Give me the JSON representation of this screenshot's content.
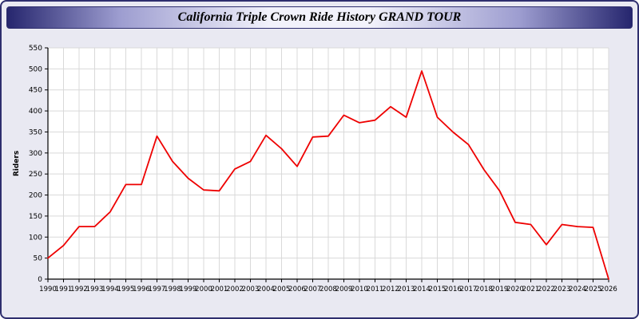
{
  "header": {
    "title": "California Triple Crown Ride History GRAND TOUR"
  },
  "chart_data": {
    "type": "line",
    "title": "California Triple Crown Ride History GRAND TOUR",
    "xlabel": "",
    "ylabel": "Riders",
    "ylim": [
      0,
      550
    ],
    "ytick_step": 50,
    "grid": true,
    "legend_position": "none",
    "line_color": "#ee0000",
    "grid_color": "#d9d9d9",
    "plot_bg": "#ffffff",
    "x": [
      1990,
      1991,
      1992,
      1993,
      1994,
      1995,
      1996,
      1997,
      1998,
      1999,
      2000,
      2001,
      2002,
      2003,
      2004,
      2005,
      2006,
      2007,
      2008,
      2009,
      2010,
      2011,
      2012,
      2013,
      2014,
      2015,
      2016,
      2017,
      2018,
      2019,
      2020,
      2021,
      2022,
      2023,
      2024,
      2025,
      2026
    ],
    "series": [
      {
        "name": "Riders",
        "values": [
          50,
          80,
          125,
          125,
          160,
          225,
          225,
          340,
          280,
          240,
          212,
          210,
          262,
          280,
          342,
          310,
          268,
          338,
          340,
          390,
          372,
          378,
          410,
          385,
          495,
          385,
          350,
          320,
          260,
          210,
          135,
          130,
          82,
          130,
          125,
          123,
          0
        ]
      }
    ]
  }
}
